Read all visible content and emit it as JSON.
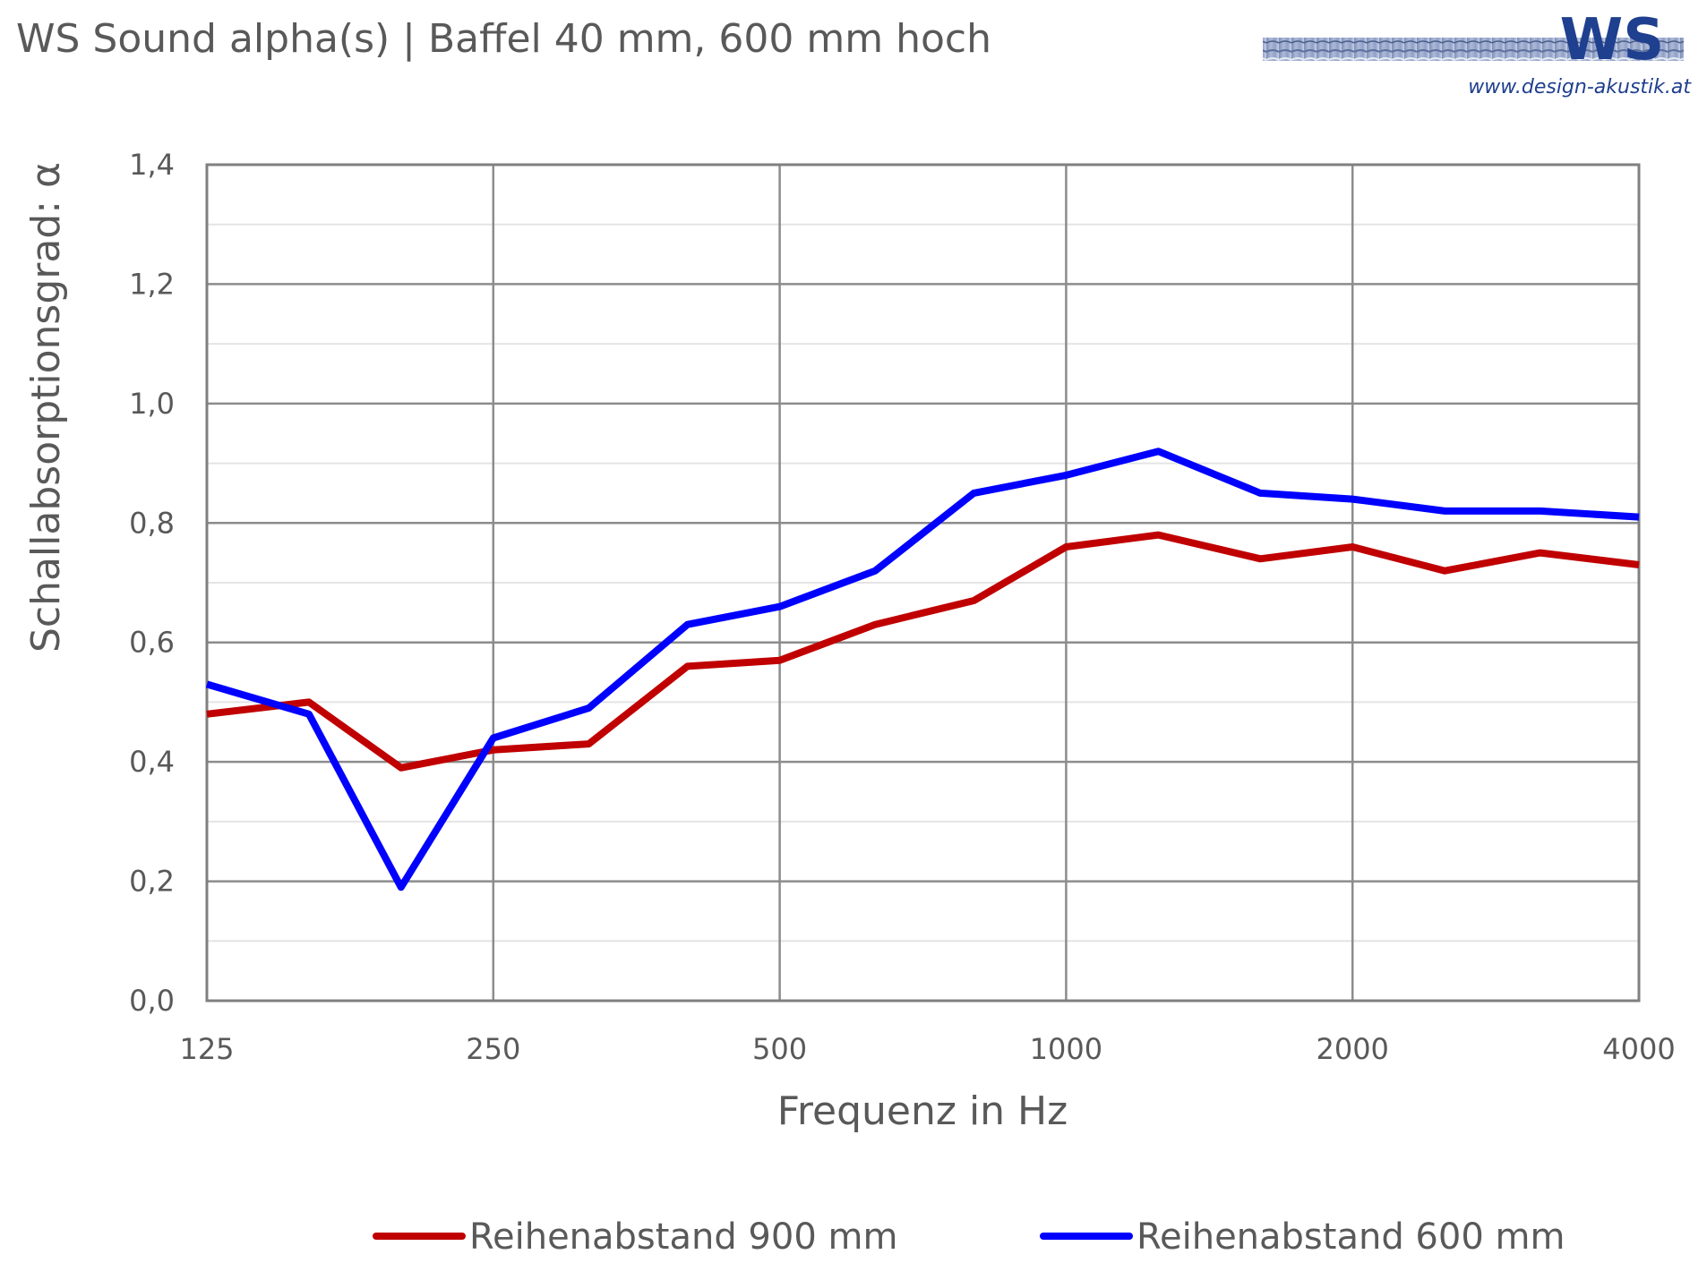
{
  "chart_data": {
    "type": "line",
    "title": "WS Sound alpha(s) | Baffel 40 mm, 600 mm hoch",
    "xlabel": "Frequenz in Hz",
    "ylabel": "Schallabsorptionsgrad: α",
    "x_scale": "log",
    "x_ticks": [
      "125",
      "250",
      "500",
      "1000",
      "2000",
      "4000"
    ],
    "y_ticks": [
      "0,0",
      "0,2",
      "0,4",
      "0,6",
      "0,8",
      "1,0",
      "1,2",
      "1,4"
    ],
    "xlim": [
      125,
      4000
    ],
    "ylim": [
      0,
      1.4
    ],
    "grid": true,
    "legend_position": "bottom",
    "x": [
      125,
      160,
      200,
      250,
      315,
      400,
      500,
      630,
      800,
      1000,
      1250,
      1600,
      2000,
      2500,
      3150,
      4000
    ],
    "series": [
      {
        "name": "Reihenabstand 900 mm",
        "color": "#c00000",
        "values": [
          0.48,
          0.5,
          0.39,
          0.42,
          0.43,
          0.56,
          0.57,
          0.63,
          0.67,
          0.76,
          0.78,
          0.74,
          0.76,
          0.72,
          0.75,
          0.73
        ]
      },
      {
        "name": "Reihenabstand 600 mm",
        "color": "#0000ff",
        "values": [
          0.53,
          0.48,
          0.19,
          0.44,
          0.49,
          0.63,
          0.66,
          0.72,
          0.85,
          0.88,
          0.92,
          0.85,
          0.84,
          0.82,
          0.82,
          0.81
        ]
      }
    ]
  },
  "logo": {
    "text": "WS",
    "url": "www.design-akustik.at"
  }
}
